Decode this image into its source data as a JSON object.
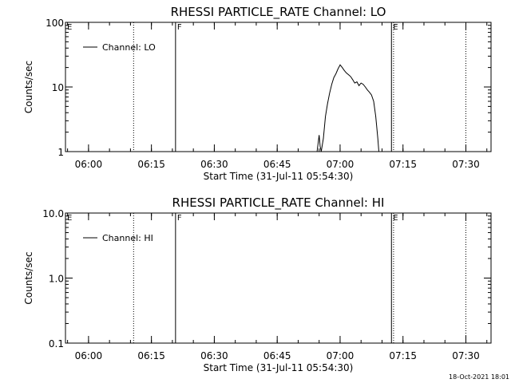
{
  "footer": {
    "timestamp": "18-Oct-2021 18:01"
  },
  "chart_data": [
    {
      "type": "line",
      "title": "RHESSI PARTICLE_RATE Channel: LO",
      "xlabel": "Start Time (31-Jul-11 05:54:30)",
      "ylabel": "Counts/sec",
      "yscale": "log",
      "ylim": [
        1,
        100
      ],
      "yticks": [
        1,
        10,
        100
      ],
      "yticklabels": [
        "1",
        "10",
        "100"
      ],
      "xlim": [
        "05:54:30",
        "07:36:00"
      ],
      "xticks": [
        "06:00",
        "06:15",
        "06:30",
        "06:45",
        "07:00",
        "07:15",
        "07:30"
      ],
      "legend": {
        "label": "Channel: LO",
        "location": "top-left"
      },
      "series": [
        {
          "name": "Channel: LO",
          "x": [
            "06:54:30",
            "06:55:00",
            "06:55:15",
            "06:55:30",
            "06:56:00",
            "06:56:30",
            "06:57:00",
            "06:57:30",
            "06:58:00",
            "06:58:30",
            "06:59:00",
            "06:59:30",
            "07:00:00",
            "07:00:30",
            "07:01:00",
            "07:01:30",
            "07:02:00",
            "07:02:30",
            "07:03:00",
            "07:03:30",
            "07:04:00",
            "07:04:30",
            "07:05:00",
            "07:05:30",
            "07:06:00",
            "07:06:30",
            "07:07:00",
            "07:07:30",
            "07:08:00",
            "07:08:30",
            "07:09:00",
            "07:09:15"
          ],
          "y": [
            1,
            1.8,
            1.2,
            1,
            1.6,
            3.5,
            5.5,
            8,
            11,
            14,
            16,
            19,
            22,
            20,
            18,
            16.5,
            15.5,
            14.5,
            13,
            11.5,
            12,
            10.5,
            11.5,
            11,
            10,
            9,
            8.3,
            7.5,
            6,
            3.5,
            1.6,
            1
          ]
        }
      ],
      "markers": [
        {
          "label": "E",
          "time": "05:54:30",
          "style": "dotted"
        },
        {
          "label": "",
          "time": "06:10:45",
          "style": "dotted"
        },
        {
          "label": "F",
          "time": "06:20:45",
          "style": "solid"
        },
        {
          "label": "E",
          "time": "07:12:15",
          "style": "solid"
        },
        {
          "label": "",
          "time": "07:12:45",
          "style": "dotted"
        },
        {
          "label": "",
          "time": "07:30:00",
          "style": "dotted"
        }
      ],
      "grid": false
    },
    {
      "type": "line",
      "title": "RHESSI PARTICLE_RATE Channel: HI",
      "xlabel": "Start Time (31-Jul-11 05:54:30)",
      "ylabel": "Counts/sec",
      "yscale": "log",
      "ylim": [
        0.1,
        10
      ],
      "yticks": [
        0.1,
        1,
        10
      ],
      "yticklabels": [
        "0.1",
        "1.0",
        "10.0"
      ],
      "xlim": [
        "05:54:30",
        "07:36:00"
      ],
      "xticks": [
        "06:00",
        "06:15",
        "06:30",
        "06:45",
        "07:00",
        "07:15",
        "07:30"
      ],
      "legend": {
        "label": "Channel: HI",
        "location": "top-left"
      },
      "series": [
        {
          "name": "Channel: HI",
          "x": [],
          "y": []
        }
      ],
      "markers": [
        {
          "label": "E",
          "time": "05:54:30",
          "style": "dotted"
        },
        {
          "label": "",
          "time": "06:10:45",
          "style": "dotted"
        },
        {
          "label": "F",
          "time": "06:20:45",
          "style": "solid"
        },
        {
          "label": "E",
          "time": "07:12:15",
          "style": "solid"
        },
        {
          "label": "",
          "time": "07:12:45",
          "style": "dotted"
        },
        {
          "label": "",
          "time": "07:30:00",
          "style": "dotted"
        }
      ],
      "grid": false
    }
  ]
}
